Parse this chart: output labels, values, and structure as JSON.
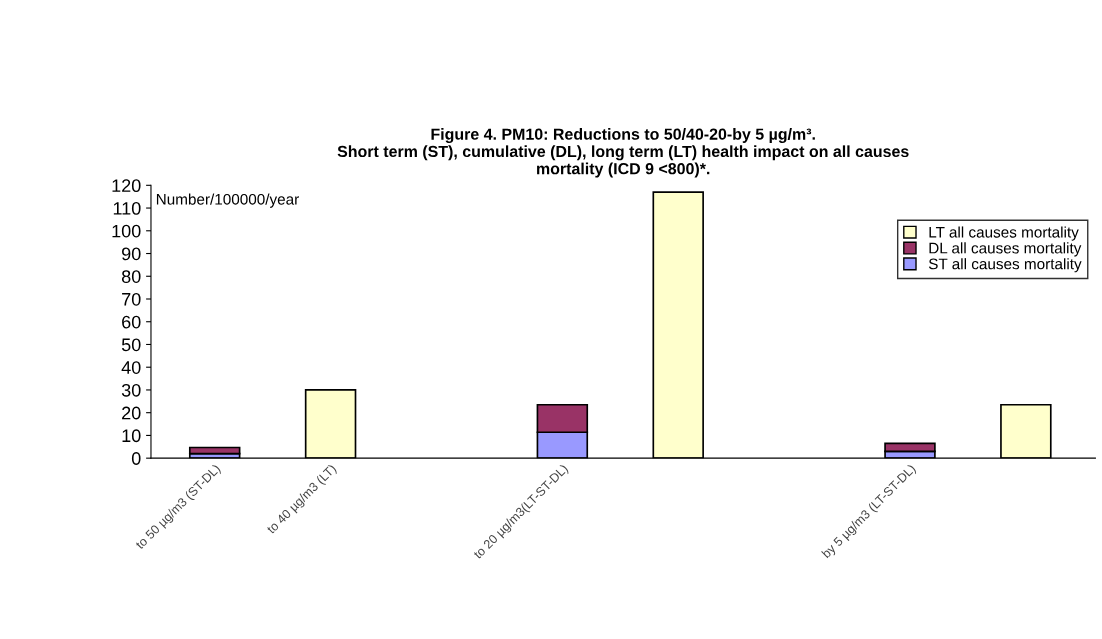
{
  "chart_data": {
    "type": "bar",
    "stacked": true,
    "title": "Figure 4. PM10: Reductions to 50/40-20-by 5 µg/m³.\nShort term (ST), cumulative (DL), long term (LT) health impact on all causes\nmortality (ICD 9 <800)*.",
    "categories": [
      "to 50 µg/m3 (ST-DL)",
      "to 40 µg/m3 (LT)",
      null,
      "to 20 µg/m3(LT-ST-DL)",
      null,
      null,
      "by 5 µg/m3 (LT-ST-DL)",
      null
    ],
    "series": [
      {
        "name": "ST all causes mortality",
        "color": "#9999ff",
        "values": [
          2,
          null,
          null,
          11.4,
          null,
          null,
          3,
          null
        ]
      },
      {
        "name": "DL all causes mortality",
        "color": "#993366",
        "values": [
          2.7,
          null,
          null,
          12.1,
          null,
          null,
          3.5,
          null
        ]
      },
      {
        "name": "LT all causes mortality",
        "color": "#ffffcc",
        "values": [
          null,
          30,
          null,
          null,
          117,
          null,
          null,
          23.5
        ]
      }
    ],
    "ylim": [
      0,
      120
    ],
    "yticks": [
      0,
      10,
      20,
      30,
      40,
      50,
      60,
      70,
      80,
      90,
      100,
      110,
      120
    ],
    "annotations": [
      "Number/100000/year"
    ],
    "legend": "top right",
    "grid": false
  }
}
